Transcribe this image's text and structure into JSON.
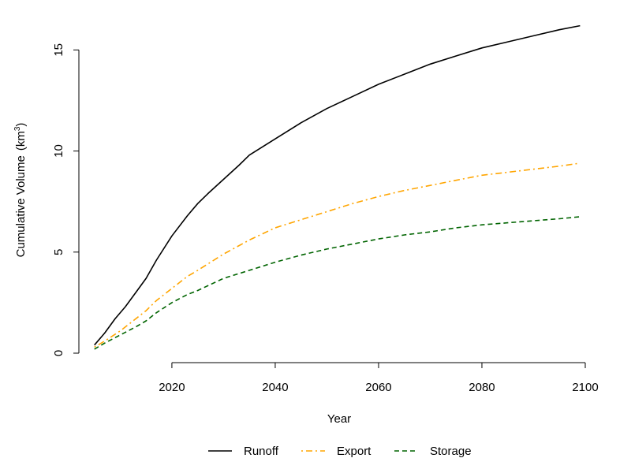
{
  "chart_data": {
    "type": "line",
    "xlabel": "Year",
    "ylabel": "Cumulative Volume",
    "ylabel_unit_base": "km",
    "ylabel_unit_exp": "3",
    "xlim": [
      2002,
      2100
    ],
    "ylim": [
      0,
      16.3
    ],
    "x_ticks": [
      2020,
      2040,
      2060,
      2080,
      2100
    ],
    "y_ticks": [
      0,
      5,
      10,
      15
    ],
    "grid": false,
    "legend_position": "bottom",
    "series": [
      {
        "name": "Runoff",
        "color": "#000000",
        "dash": "solid",
        "points": [
          [
            2005,
            0.4
          ],
          [
            2007,
            1.0
          ],
          [
            2009,
            1.7
          ],
          [
            2011,
            2.3
          ],
          [
            2013,
            3.0
          ],
          [
            2015,
            3.7
          ],
          [
            2017,
            4.6
          ],
          [
            2020,
            5.8
          ],
          [
            2023,
            6.8
          ],
          [
            2025,
            7.4
          ],
          [
            2027,
            7.9
          ],
          [
            2030,
            8.6
          ],
          [
            2033,
            9.3
          ],
          [
            2035,
            9.8
          ],
          [
            2040,
            10.6
          ],
          [
            2045,
            11.4
          ],
          [
            2050,
            12.1
          ],
          [
            2055,
            12.7
          ],
          [
            2060,
            13.3
          ],
          [
            2065,
            13.8
          ],
          [
            2070,
            14.3
          ],
          [
            2075,
            14.7
          ],
          [
            2080,
            15.1
          ],
          [
            2085,
            15.4
          ],
          [
            2090,
            15.7
          ],
          [
            2095,
            16.0
          ],
          [
            2099,
            16.2
          ]
        ]
      },
      {
        "name": "Export",
        "color": "#FFA500",
        "dash": "dotdash",
        "points": [
          [
            2005,
            0.3
          ],
          [
            2007,
            0.6
          ],
          [
            2010,
            1.1
          ],
          [
            2013,
            1.7
          ],
          [
            2015,
            2.1
          ],
          [
            2017,
            2.6
          ],
          [
            2020,
            3.2
          ],
          [
            2023,
            3.8
          ],
          [
            2025,
            4.1
          ],
          [
            2030,
            4.9
          ],
          [
            2035,
            5.6
          ],
          [
            2040,
            6.2
          ],
          [
            2045,
            6.6
          ],
          [
            2050,
            7.0
          ],
          [
            2055,
            7.4
          ],
          [
            2060,
            7.75
          ],
          [
            2065,
            8.05
          ],
          [
            2070,
            8.3
          ],
          [
            2075,
            8.55
          ],
          [
            2080,
            8.8
          ],
          [
            2085,
            8.95
          ],
          [
            2090,
            9.1
          ],
          [
            2095,
            9.25
          ],
          [
            2099,
            9.4
          ]
        ]
      },
      {
        "name": "Storage",
        "color": "#006400",
        "dash": "dashed",
        "points": [
          [
            2005,
            0.2
          ],
          [
            2007,
            0.5
          ],
          [
            2010,
            0.9
          ],
          [
            2013,
            1.3
          ],
          [
            2015,
            1.6
          ],
          [
            2017,
            2.0
          ],
          [
            2020,
            2.5
          ],
          [
            2023,
            2.9
          ],
          [
            2025,
            3.1
          ],
          [
            2030,
            3.7
          ],
          [
            2035,
            4.1
          ],
          [
            2040,
            4.5
          ],
          [
            2045,
            4.85
          ],
          [
            2050,
            5.15
          ],
          [
            2055,
            5.4
          ],
          [
            2060,
            5.65
          ],
          [
            2065,
            5.85
          ],
          [
            2070,
            6.0
          ],
          [
            2075,
            6.2
          ],
          [
            2080,
            6.35
          ],
          [
            2085,
            6.45
          ],
          [
            2090,
            6.55
          ],
          [
            2095,
            6.65
          ],
          [
            2099,
            6.75
          ]
        ]
      }
    ]
  }
}
